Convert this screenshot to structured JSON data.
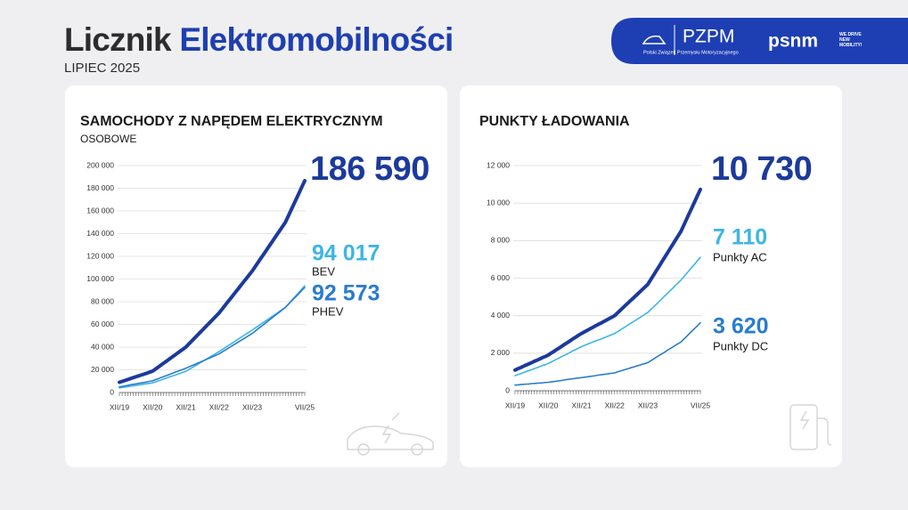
{
  "header": {
    "title_a": "Licznik",
    "title_b": "Elektromobilności",
    "subtitle": "LIPIEC 2025",
    "logo_pzpm": "PZPM",
    "logo_pzpm_sub": "Polski Związek Przemysłu Motoryzacyjnego",
    "logo_psnm": "psnm",
    "logo_psnm_sub": "WE DRIVE NEW MOBILITY!"
  },
  "chart_data": [
    {
      "type": "line",
      "title": "SAMOCHODY Z NAPĘDEM ELEKTRYCZNYM",
      "subtitle": "OSOBOWE",
      "categories": [
        "XII/19",
        null,
        null,
        null,
        null,
        null,
        null,
        null,
        null,
        null,
        null,
        null,
        "XII/20",
        null,
        null,
        null,
        null,
        null,
        null,
        null,
        null,
        null,
        null,
        null,
        "XII/21",
        null,
        null,
        null,
        null,
        null,
        null,
        null,
        null,
        null,
        null,
        null,
        "XII/22",
        null,
        null,
        null,
        null,
        null,
        null,
        null,
        null,
        null,
        null,
        null,
        "XII/23",
        null,
        null,
        null,
        null,
        null,
        null,
        null,
        null,
        null,
        null,
        null,
        null,
        null,
        null,
        null,
        null,
        null,
        null,
        "VII/25"
      ],
      "ylim": [
        0,
        200000
      ],
      "yticks": [
        0,
        {
          "value": 20000,
          "label": "20 000"
        },
        {
          "value": 40000,
          "label": "40 000"
        },
        {
          "value": 60000,
          "label": "60 000"
        },
        {
          "value": 80000,
          "label": "80 000"
        },
        {
          "value": 100000,
          "label": "100 000"
        },
        {
          "value": 120000,
          "label": "120 000"
        },
        {
          "value": 140000,
          "label": "140 000"
        },
        {
          "value": 160000,
          "label": "160 000"
        },
        {
          "value": 180000,
          "label": "180 000"
        },
        {
          "value": 200000,
          "label": "200 000"
        }
      ],
      "grid": true,
      "series": [
        {
          "color": "#1c3a9c",
          "width": 4,
          "end_label": "186 590",
          "values": [
            9000,
            9800,
            10600,
            11400,
            12300,
            13100,
            13900,
            14700,
            15500,
            16300,
            17100,
            18000,
            18800,
            20600,
            22300,
            24100,
            25900,
            27600,
            29400,
            31200,
            32900,
            34700,
            36500,
            38200,
            40000,
            42500,
            45000,
            47500,
            50000,
            52500,
            55000,
            57500,
            60000,
            62500,
            65000,
            67500,
            70000,
            73100,
            76200,
            79300,
            82300,
            85400,
            88500,
            91600,
            94700,
            97800,
            100800,
            103900,
            107000,
            110600,
            114200,
            117800,
            121300,
            124900,
            128500,
            132100,
            135700,
            139300,
            142800,
            146400,
            150000,
            155200,
            160500,
            165700,
            170900,
            176100,
            181400,
            186590
          ]
        },
        {
          "name": "BEV",
          "color": "#3db5e6",
          "width": 1.6,
          "end_label": "94 017",
          "values": [
            4000,
            4400,
            4800,
            5100,
            5500,
            5900,
            6300,
            6600,
            7000,
            7400,
            7800,
            8100,
            8500,
            9300,
            10200,
            11000,
            11900,
            12700,
            13600,
            14400,
            15200,
            16100,
            16900,
            17800,
            18600,
            20100,
            21500,
            23000,
            24400,
            25900,
            27300,
            28800,
            30200,
            31700,
            33100,
            34600,
            36000,
            37600,
            39200,
            40800,
            42300,
            43900,
            45500,
            47100,
            48700,
            50300,
            51800,
            53400,
            55000,
            56700,
            58300,
            60000,
            61700,
            63300,
            65000,
            66700,
            68300,
            70000,
            71700,
            73300,
            75000,
            77700,
            80400,
            83200,
            85900,
            88600,
            91300,
            94017
          ]
        },
        {
          "name": "PHEV",
          "color": "#2a7ccc",
          "width": 1.6,
          "end_label": "92 573",
          "values": [
            5000,
            5400,
            5800,
            6300,
            6800,
            7200,
            7600,
            8100,
            8500,
            8900,
            9300,
            9900,
            10300,
            11300,
            12100,
            13100,
            14000,
            14900,
            15800,
            16800,
            17700,
            18600,
            19600,
            20400,
            21400,
            22400,
            23500,
            24500,
            25600,
            26600,
            27700,
            28700,
            29800,
            30800,
            31900,
            32900,
            34000,
            35500,
            37000,
            38500,
            40000,
            41500,
            43000,
            44500,
            46000,
            47500,
            49000,
            50500,
            52000,
            53900,
            55900,
            57800,
            59600,
            61600,
            63500,
            65400,
            67400,
            69300,
            71100,
            73100,
            75000,
            77500,
            80100,
            82500,
            85000,
            87500,
            90100,
            92573
          ]
        }
      ]
    },
    {
      "type": "line",
      "title": "PUNKTY ŁADOWANIA",
      "categories": [
        "XII/19",
        null,
        null,
        null,
        null,
        null,
        null,
        null,
        null,
        null,
        null,
        null,
        "XII/20",
        null,
        null,
        null,
        null,
        null,
        null,
        null,
        null,
        null,
        null,
        null,
        "XII/21",
        null,
        null,
        null,
        null,
        null,
        null,
        null,
        null,
        null,
        null,
        null,
        "XII/22",
        null,
        null,
        null,
        null,
        null,
        null,
        null,
        null,
        null,
        null,
        null,
        "XII/23",
        null,
        null,
        null,
        null,
        null,
        null,
        null,
        null,
        null,
        null,
        null,
        null,
        null,
        null,
        null,
        null,
        null,
        null,
        "VII/25"
      ],
      "ylim": [
        0,
        12000
      ],
      "yticks": [
        0,
        {
          "value": 2000,
          "label": "2 000"
        },
        {
          "value": 4000,
          "label": "4 000"
        },
        {
          "value": 6000,
          "label": "6 000"
        },
        {
          "value": 8000,
          "label": "8 000"
        },
        {
          "value": 10000,
          "label": "10 000"
        },
        {
          "value": 12000,
          "label": "12 000"
        }
      ],
      "grid": true,
      "series": [
        {
          "color": "#1c3a9c",
          "width": 4,
          "end_label": "10 730",
          "values": [
            1100,
            1170,
            1230,
            1300,
            1370,
            1430,
            1500,
            1570,
            1630,
            1700,
            1770,
            1830,
            1900,
            2000,
            2090,
            2190,
            2280,
            2380,
            2480,
            2570,
            2670,
            2770,
            2860,
            2960,
            3050,
            3130,
            3210,
            3290,
            3370,
            3450,
            3530,
            3600,
            3680,
            3760,
            3840,
            3920,
            4000,
            4140,
            4280,
            4420,
            4560,
            4700,
            4840,
            4970,
            5110,
            5250,
            5390,
            5530,
            5670,
            5910,
            6140,
            6380,
            6610,
            6850,
            7090,
            7320,
            7560,
            7790,
            8030,
            8260,
            8500,
            8820,
            9140,
            9460,
            9770,
            10090,
            10410,
            10730
          ]
        },
        {
          "name": "Punkty AC",
          "color": "#3db5e6",
          "width": 1.6,
          "end_label": "7 110",
          "values": [
            800,
            860,
            900,
            960,
            1020,
            1070,
            1120,
            1180,
            1230,
            1290,
            1350,
            1390,
            1450,
            1530,
            1600,
            1680,
            1750,
            1830,
            1900,
            1970,
            2050,
            2130,
            2200,
            2280,
            2350,
            2410,
            2470,
            2530,
            2590,
            2650,
            2700,
            2750,
            2810,
            2870,
            2930,
            2990,
            3050,
            3140,
            3230,
            3330,
            3420,
            3520,
            3610,
            3700,
            3790,
            3890,
            3980,
            4080,
            4170,
            4320,
            4460,
            4600,
            4740,
            4890,
            5040,
            5170,
            5320,
            5460,
            5610,
            5750,
            5900,
            6070,
            6250,
            6420,
            6590,
            6760,
            6940,
            7110
          ]
        },
        {
          "name": "Punkty DC",
          "color": "#2a7ccc",
          "width": 1.6,
          "end_label": "3 620",
          "values": [
            300,
            310,
            330,
            340,
            350,
            360,
            380,
            390,
            400,
            410,
            420,
            440,
            450,
            470,
            490,
            510,
            530,
            550,
            580,
            600,
            620,
            640,
            660,
            680,
            700,
            720,
            740,
            760,
            780,
            800,
            830,
            850,
            870,
            890,
            910,
            930,
            950,
            1000,
            1050,
            1090,
            1140,
            1180,
            1230,
            1270,
            1320,
            1360,
            1410,
            1450,
            1500,
            1590,
            1680,
            1780,
            1870,
            1960,
            2050,
            2150,
            2240,
            2330,
            2420,
            2510,
            2600,
            2750,
            2890,
            3040,
            3180,
            3330,
            3470,
            3620
          ]
        }
      ]
    }
  ]
}
